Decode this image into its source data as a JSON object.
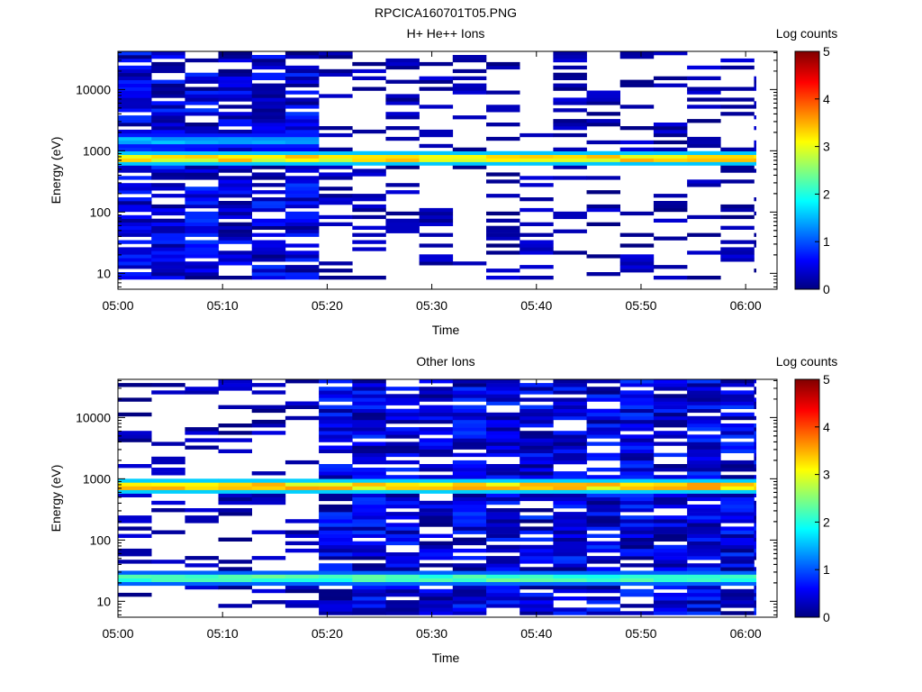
{
  "figure": {
    "title": "RPCICA160701T05.PNG"
  },
  "colorbar": {
    "label": "Log counts",
    "ticks": [
      "0",
      "1",
      "2",
      "3",
      "4",
      "5"
    ]
  },
  "chart_data": [
    {
      "type": "heatmap",
      "title": "H+ He++ Ions",
      "xlabel": "Time",
      "ylabel": "Energy (eV)",
      "x_ticks": [
        "05:00",
        "05:10",
        "05:20",
        "05:30",
        "05:40",
        "05:50",
        "06:00"
      ],
      "x_range": [
        "05:00",
        "06:03"
      ],
      "y_scale": "log",
      "y_ticks": [
        "10",
        "100",
        "1000",
        "10000"
      ],
      "y_range": [
        5.5,
        42000
      ],
      "color_scale": "jet",
      "z_label": "Log counts",
      "z_range": [
        0,
        5
      ],
      "features": [
        {
          "description": "dense count band",
          "energy": 750,
          "peak_log_counts": 3.5,
          "time_range": [
            "05:00",
            "06:01"
          ]
        },
        {
          "description": "secondary band",
          "energy": 1550,
          "peak_log_counts": 1.6,
          "time_range": [
            "05:00",
            "05:19"
          ]
        },
        {
          "description": "broad coverage region",
          "energy_range": [
            8,
            42000
          ],
          "time_range": [
            "05:00",
            "05:19"
          ]
        }
      ]
    },
    {
      "type": "heatmap",
      "title": "Other Ions",
      "xlabel": "Time",
      "ylabel": "Energy (eV)",
      "x_ticks": [
        "05:00",
        "05:10",
        "05:20",
        "05:30",
        "05:40",
        "05:50",
        "06:00"
      ],
      "x_range": [
        "05:00",
        "06:03"
      ],
      "y_scale": "log",
      "y_ticks": [
        "10",
        "100",
        "1000",
        "10000"
      ],
      "y_range": [
        5.5,
        42000
      ],
      "color_scale": "jet",
      "z_label": "Log counts",
      "z_range": [
        0,
        5
      ],
      "features": [
        {
          "description": "dense count band",
          "energy": 750,
          "peak_log_counts": 3.6,
          "time_range": [
            "05:00",
            "06:01"
          ]
        },
        {
          "description": "low-energy band",
          "energy": 25,
          "peak_log_counts": 2.4,
          "time_range": [
            "05:00",
            "06:01"
          ]
        },
        {
          "description": "broad coverage region",
          "energy_range": [
            6,
            42000
          ],
          "time_range": [
            "05:19",
            "06:01"
          ]
        }
      ]
    }
  ],
  "colors": {
    "background": "#ffffff",
    "jet": [
      "#000080",
      "#0000ff",
      "#00ffff",
      "#ffff00",
      "#ff0000",
      "#800000"
    ]
  }
}
